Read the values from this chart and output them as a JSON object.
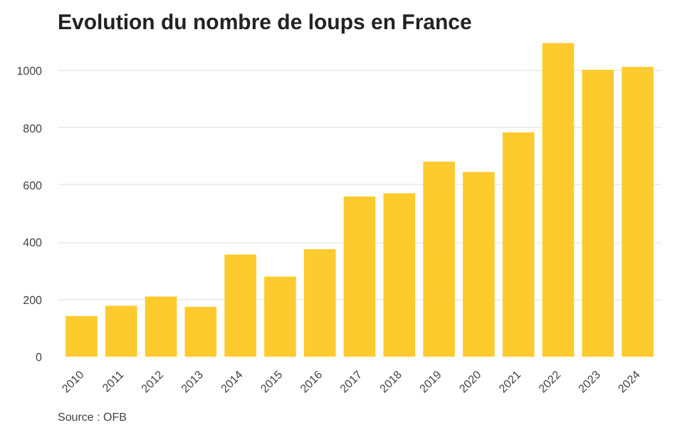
{
  "chart_data": {
    "type": "bar",
    "title": "Evolution du nombre de loups en France",
    "categories": [
      "2010",
      "2011",
      "2012",
      "2013",
      "2014",
      "2015",
      "2016",
      "2017",
      "2018",
      "2019",
      "2020",
      "2021",
      "2022",
      "2023",
      "2024"
    ],
    "values": [
      142,
      178,
      210,
      174,
      357,
      280,
      376,
      560,
      571,
      682,
      646,
      784,
      1096,
      1003,
      1013
    ],
    "color": "#fecb2f",
    "ylim": [
      0,
      1100
    ],
    "yticks": [
      0,
      200,
      400,
      600,
      800,
      1000
    ],
    "grid": "y",
    "annotations": [
      "Source : OFB"
    ]
  }
}
